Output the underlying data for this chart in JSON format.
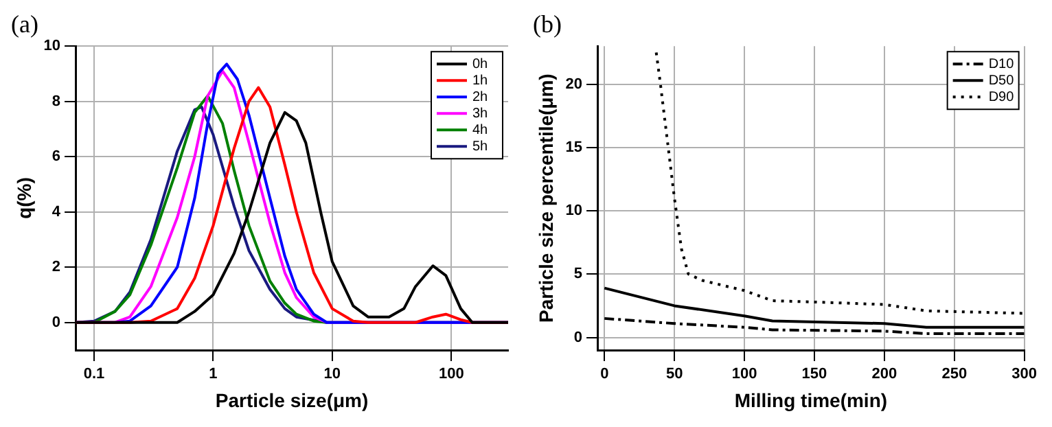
{
  "chart_data": [
    {
      "type": "line",
      "title": "(a)",
      "xlabel": "Particle size(μm)",
      "ylabel": "q(%)",
      "log": "x",
      "xlim": [
        0.07,
        300
      ],
      "xticks": [
        0.1,
        1,
        10,
        100
      ],
      "ylim": [
        -1,
        10
      ],
      "yticks": [
        0,
        2,
        4,
        6,
        8,
        10
      ],
      "grid": true,
      "legend": "top right",
      "marker": "none",
      "series": [
        {
          "name": "0h",
          "color": "#000000",
          "x": [
            0.07,
            0.5,
            0.7,
            1,
            1.5,
            2,
            3,
            4,
            5,
            6,
            8,
            10,
            15,
            20,
            30,
            40,
            50,
            70,
            90,
            120,
            150,
            300
          ],
          "values": [
            0,
            0,
            0.4,
            1.0,
            2.5,
            4,
            6.5,
            7.6,
            7.3,
            6.5,
            4,
            2.2,
            0.6,
            0.2,
            0.2,
            0.5,
            1.3,
            2.05,
            1.7,
            0.5,
            0,
            0
          ]
        },
        {
          "name": "1h",
          "color": "#ff0000",
          "x": [
            0.07,
            0.2,
            0.3,
            0.5,
            0.7,
            1,
            1.5,
            2,
            2.4,
            3,
            4,
            5,
            7,
            10,
            15,
            20,
            50,
            70,
            90,
            120,
            150,
            300
          ],
          "values": [
            0,
            0,
            0.05,
            0.5,
            1.6,
            3.5,
            6.3,
            8.0,
            8.5,
            7.8,
            5.7,
            4.0,
            1.8,
            0.5,
            0.05,
            0,
            0,
            0.2,
            0.3,
            0.1,
            0,
            0
          ]
        },
        {
          "name": "2h",
          "color": "#0000ff",
          "x": [
            0.07,
            0.15,
            0.2,
            0.3,
            0.5,
            0.7,
            0.9,
            1.1,
            1.3,
            1.6,
            2,
            3,
            4,
            5,
            7,
            9,
            300
          ],
          "values": [
            0,
            0,
            0.05,
            0.6,
            2.0,
            4.5,
            7.2,
            9.0,
            9.35,
            8.8,
            7.5,
            4.5,
            2.4,
            1.2,
            0.3,
            0,
            0
          ]
        },
        {
          "name": "3h",
          "color": "#ff00ff",
          "x": [
            0.07,
            0.15,
            0.2,
            0.3,
            0.5,
            0.7,
            0.9,
            1.2,
            1.5,
            2,
            3,
            4,
            5,
            7,
            9,
            300
          ],
          "values": [
            0,
            0,
            0.2,
            1.3,
            3.8,
            6.0,
            8.2,
            9.1,
            8.5,
            6.5,
            3.6,
            1.8,
            0.9,
            0.2,
            0,
            0
          ]
        },
        {
          "name": "4h",
          "color": "#008000",
          "x": [
            0.07,
            0.1,
            0.15,
            0.2,
            0.3,
            0.5,
            0.7,
            0.9,
            1.2,
            1.5,
            2,
            3,
            4,
            5,
            7,
            9,
            300
          ],
          "values": [
            0,
            0,
            0.4,
            1.0,
            2.8,
            5.6,
            7.6,
            8.2,
            7.2,
            5.5,
            3.5,
            1.5,
            0.7,
            0.3,
            0.05,
            0,
            0
          ]
        },
        {
          "name": "5h",
          "color": "#1a1a80",
          "x": [
            0.07,
            0.1,
            0.15,
            0.2,
            0.3,
            0.5,
            0.7,
            0.8,
            1,
            1.5,
            2,
            3,
            4,
            5,
            9,
            300
          ],
          "values": [
            0,
            0.05,
            0.4,
            1.1,
            3.0,
            6.2,
            7.7,
            7.8,
            6.8,
            4.2,
            2.6,
            1.2,
            0.5,
            0.2,
            0,
            0
          ]
        }
      ]
    },
    {
      "type": "line",
      "title": "(b)",
      "xlabel": "Milling time(min)",
      "ylabel": "Particle size percentile(μm)",
      "xlim": [
        -5,
        300
      ],
      "xticks": [
        0,
        50,
        100,
        150,
        200,
        250,
        300
      ],
      "ylim": [
        -1,
        23
      ],
      "yticks": [
        0,
        5,
        10,
        15,
        20
      ],
      "grid": true,
      "legend": "top right",
      "marker": "none",
      "series": [
        {
          "name": "D10",
          "color": "#000000",
          "line_style": "dashdot",
          "x": [
            0,
            50,
            100,
            120,
            200,
            230,
            300
          ],
          "values": [
            1.5,
            1.1,
            0.8,
            0.6,
            0.5,
            0.3,
            0.3
          ]
        },
        {
          "name": "D50",
          "color": "#000000",
          "line_style": "solid",
          "x": [
            0,
            50,
            100,
            120,
            200,
            230,
            300
          ],
          "values": [
            3.9,
            2.5,
            1.7,
            1.3,
            1.1,
            0.8,
            0.8
          ]
        },
        {
          "name": "D90",
          "color": "#000000",
          "line_style": "dotted",
          "x": [
            37,
            40,
            45,
            50,
            55,
            60,
            70,
            100,
            120,
            150,
            200,
            230,
            300
          ],
          "values": [
            22.5,
            20,
            15.5,
            11,
            7,
            5,
            4.5,
            3.7,
            2.9,
            2.8,
            2.6,
            2.1,
            1.9
          ]
        }
      ]
    }
  ]
}
